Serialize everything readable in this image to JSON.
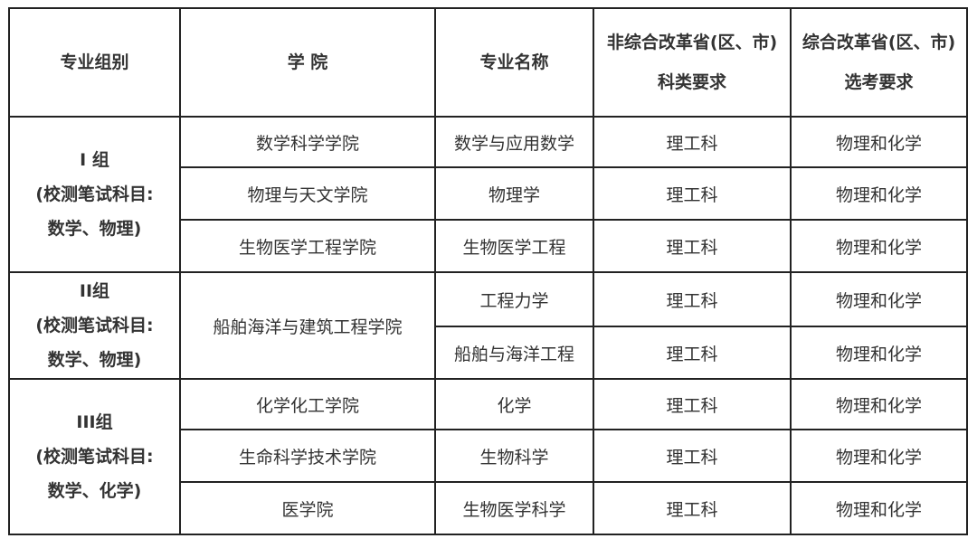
{
  "headers": {
    "group": "专业组别",
    "college": "学 院",
    "major": "专业名称",
    "non_reform_line1": "非综合改革省(区、市)",
    "non_reform_line2": "科类要求",
    "reform_line1": "综合改革省(区、市)",
    "reform_line2": "选考要求"
  },
  "groups": [
    {
      "name": "I 组",
      "line2": "(校测笔试科目:",
      "line3": "数学、物理)"
    },
    {
      "name": "II组",
      "line2": "(校测笔试科目:",
      "line3": "数学、物理)"
    },
    {
      "name": "III组",
      "line2": "(校测笔试科目:",
      "line3": "数学、化学)"
    }
  ],
  "rows": [
    {
      "college": "数学科学学院",
      "major": "数学与应用数学",
      "category": "理工科",
      "subjects": "物理和化学"
    },
    {
      "college": "物理与天文学院",
      "major": "物理学",
      "category": "理工科",
      "subjects": "物理和化学"
    },
    {
      "college": "生物医学工程学院",
      "major": "生物医学工程",
      "category": "理工科",
      "subjects": "物理和化学"
    },
    {
      "college": "船舶海洋与建筑工程学院",
      "major": "工程力学",
      "category": "理工科",
      "subjects": "物理和化学"
    },
    {
      "college": "",
      "major": "船舶与海洋工程",
      "category": "理工科",
      "subjects": "物理和化学"
    },
    {
      "college": "化学化工学院",
      "major": "化学",
      "category": "理工科",
      "subjects": "物理和化学"
    },
    {
      "college": "生命科学技术学院",
      "major": "生物科学",
      "category": "理工科",
      "subjects": "物理和化学"
    },
    {
      "college": "医学院",
      "major": "生物医学科学",
      "category": "理工科",
      "subjects": "物理和化学"
    }
  ]
}
